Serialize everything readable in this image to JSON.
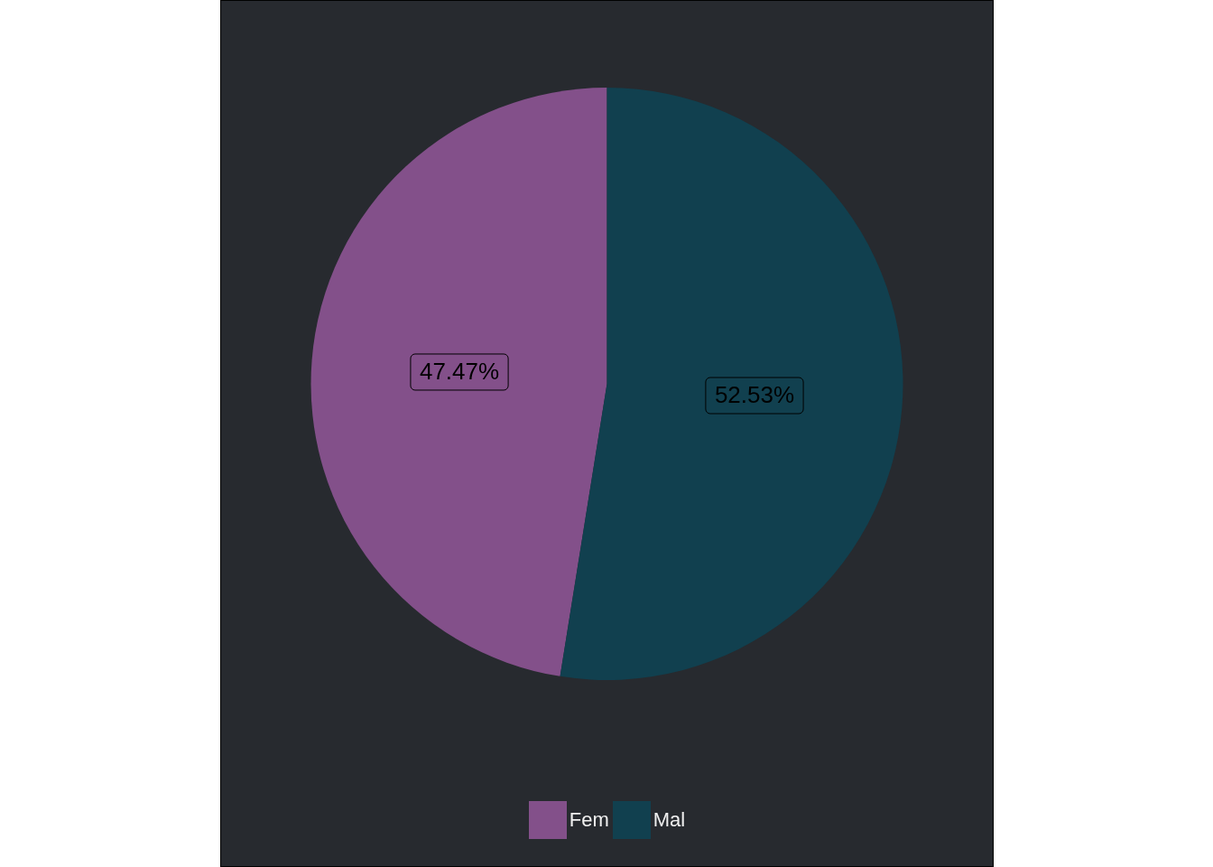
{
  "chart_data": {
    "type": "pie",
    "categories": [
      "Fem",
      "Mal"
    ],
    "values": [
      47.47,
      52.53
    ],
    "colors": [
      "#83508a",
      "#11404f"
    ],
    "value_labels": [
      "47.47%",
      "52.53%"
    ],
    "legend": "bottom"
  }
}
